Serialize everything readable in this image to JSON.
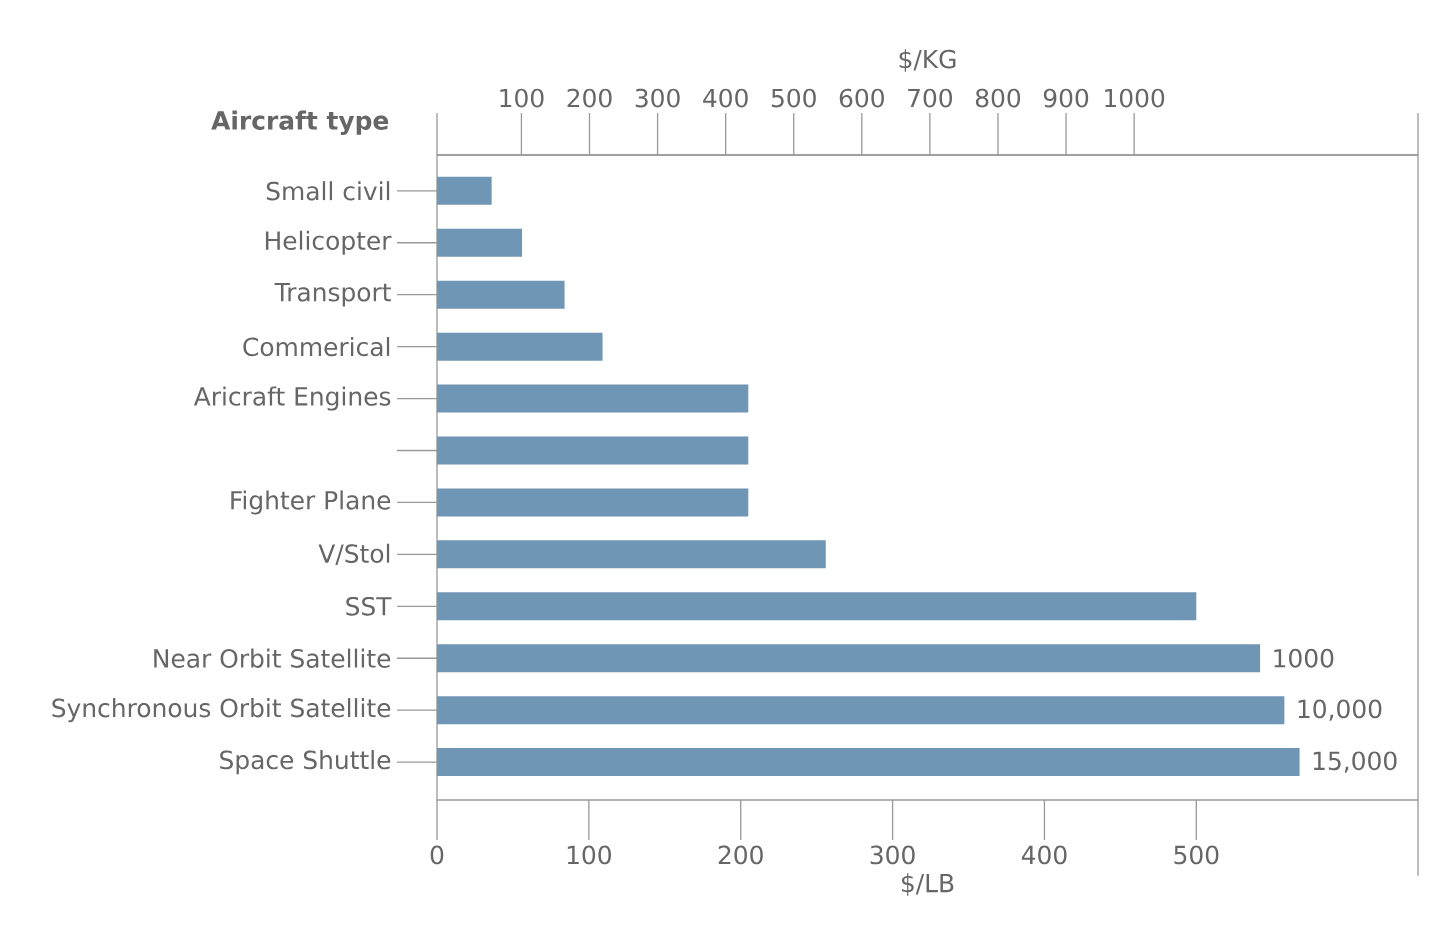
{
  "chart_data": {
    "type": "bar",
    "orientation": "horizontal",
    "ylabel": "Aircraft type",
    "xlabel": "$/LB",
    "x2label": "$/KG",
    "categories": [
      "Small civil",
      "Helicopter",
      "Transport",
      "Commerical",
      "Aricraft Engines",
      null,
      "Fighter Plane",
      "V/Stol",
      "SST",
      "Near Orbit Satellite",
      "Synchronous Orbit Satellite",
      "Space Shuttle"
    ],
    "values": [
      36,
      56,
      84,
      109,
      205,
      205,
      205,
      256,
      500,
      542,
      558,
      568
    ],
    "annotations": [
      {
        "text": "1000",
        "x": 542,
        "y": "Near Orbit Satellite"
      },
      {
        "text": "10,000",
        "x": 558,
        "y": "Synchronous Orbit Satellite"
      },
      {
        "text": "15,000",
        "x": 568,
        "y": "Space Shuttle"
      }
    ],
    "color": "#7096b5",
    "xlim": [
      0,
      646
    ],
    "xticks": [
      0,
      100,
      200,
      300,
      400,
      500
    ],
    "x2lim": [
      -24,
      1417
    ],
    "x2ticks": [
      100,
      200,
      300,
      400,
      500,
      600,
      700,
      800,
      900,
      1000
    ]
  }
}
